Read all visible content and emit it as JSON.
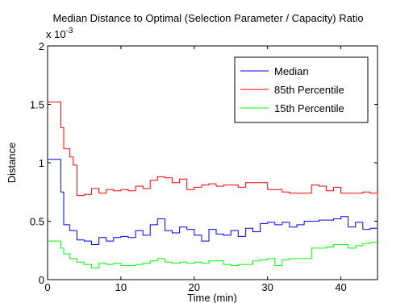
{
  "chart_data": {
    "type": "line",
    "title": "Median Distance to Optimal (Selection Parameter / Capacity) Ratio",
    "xlabel": "Time (min)",
    "ylabel": "Distance",
    "y_multiplier": "x 10",
    "y_multiplier_exponent": "-3",
    "xlim": [
      0,
      45
    ],
    "ylim": [
      0,
      2
    ],
    "xticks": [
      0,
      10,
      20,
      30,
      40
    ],
    "yticks": [
      0,
      0.5,
      1,
      1.5,
      2
    ],
    "ytick_labels": [
      "0",
      "0.5",
      "1",
      "1.5",
      "2"
    ],
    "grid": false,
    "legend_position": "top-right",
    "series": [
      {
        "name": "Median",
        "color": "#0000ff",
        "x": [
          0,
          1.5,
          1.8,
          2.2,
          3,
          4,
          5,
          6,
          7,
          8,
          9,
          10,
          11,
          12,
          13,
          14,
          15,
          16,
          17,
          18,
          19,
          20,
          21,
          22,
          23,
          24,
          25,
          26,
          27,
          28,
          29,
          30,
          31,
          32,
          33,
          34,
          35,
          36,
          37,
          38,
          39,
          40,
          41,
          42,
          43,
          44,
          45
        ],
        "y": [
          1.03,
          1.03,
          0.75,
          0.47,
          0.42,
          0.34,
          0.33,
          0.3,
          0.36,
          0.33,
          0.36,
          0.37,
          0.36,
          0.42,
          0.38,
          0.47,
          0.52,
          0.42,
          0.4,
          0.45,
          0.43,
          0.38,
          0.33,
          0.43,
          0.39,
          0.38,
          0.42,
          0.37,
          0.44,
          0.41,
          0.48,
          0.49,
          0.47,
          0.49,
          0.45,
          0.47,
          0.5,
          0.5,
          0.51,
          0.51,
          0.52,
          0.54,
          0.45,
          0.49,
          0.43,
          0.44,
          0.43
        ]
      },
      {
        "name": "85th Percentile",
        "color": "#ff0000",
        "x": [
          0,
          1.5,
          1.8,
          2.2,
          3,
          3.5,
          4,
          5,
          6,
          7,
          8,
          9,
          10,
          11,
          12,
          13,
          14,
          15,
          16,
          17,
          18,
          19,
          20,
          21,
          22,
          23,
          24,
          25,
          26,
          27,
          28,
          29,
          30,
          31,
          32,
          33,
          34,
          35,
          36,
          37,
          38,
          39,
          40,
          41,
          42,
          43,
          44,
          45
        ],
        "y": [
          1.52,
          1.52,
          1.3,
          1.12,
          1.05,
          0.98,
          0.72,
          0.73,
          0.78,
          0.74,
          0.77,
          0.76,
          0.77,
          0.76,
          0.8,
          0.78,
          0.85,
          0.88,
          0.87,
          0.83,
          0.86,
          0.77,
          0.79,
          0.81,
          0.82,
          0.8,
          0.81,
          0.81,
          0.79,
          0.83,
          0.83,
          0.83,
          0.77,
          0.77,
          0.75,
          0.74,
          0.74,
          0.74,
          0.81,
          0.8,
          0.76,
          0.79,
          0.74,
          0.74,
          0.74,
          0.75,
          0.74,
          0.7
        ]
      },
      {
        "name": "15th Percentile",
        "color": "#00ff00",
        "x": [
          0,
          1.5,
          1.8,
          2.2,
          3,
          4,
          5,
          6,
          7,
          8,
          9,
          10,
          11,
          12,
          13,
          14,
          15,
          16,
          17,
          18,
          19,
          20,
          21,
          22,
          23,
          24,
          25,
          26,
          27,
          28,
          29,
          30,
          31,
          32,
          33,
          34,
          35,
          36,
          37,
          38,
          39,
          40,
          41,
          42,
          43,
          44,
          45
        ],
        "y": [
          0.33,
          0.33,
          0.27,
          0.22,
          0.18,
          0.15,
          0.13,
          0.1,
          0.14,
          0.13,
          0.14,
          0.12,
          0.12,
          0.13,
          0.14,
          0.16,
          0.18,
          0.15,
          0.14,
          0.15,
          0.14,
          0.15,
          0.14,
          0.16,
          0.16,
          0.13,
          0.12,
          0.13,
          0.13,
          0.16,
          0.17,
          0.18,
          0.12,
          0.17,
          0.18,
          0.18,
          0.18,
          0.27,
          0.27,
          0.28,
          0.3,
          0.3,
          0.27,
          0.29,
          0.31,
          0.32,
          0.32
        ]
      }
    ]
  }
}
